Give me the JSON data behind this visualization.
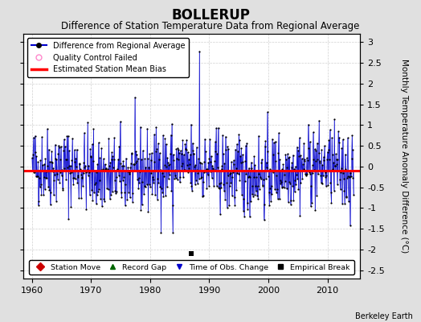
{
  "title": "BOLLERUP",
  "subtitle": "Difference of Station Temperature Data from Regional Average",
  "ylabel": "Monthly Temperature Anomaly Difference (°C)",
  "xlabel_bottom": "Berkeley Earth",
  "ylim": [
    -2.7,
    3.2
  ],
  "xlim": [
    1958.5,
    2015.5
  ],
  "xticks": [
    1960,
    1970,
    1980,
    1990,
    2000,
    2010
  ],
  "yticks_right": [
    3,
    2.5,
    2,
    1.5,
    1,
    0.5,
    0,
    -0.5,
    -1,
    -1.5,
    -2,
    -2.5
  ],
  "yticks_left": [
    3,
    2.5,
    2,
    1.5,
    1,
    0.5,
    0,
    -0.5,
    -1,
    -1.5,
    -2,
    -2.5
  ],
  "line_color": "#0000cc",
  "dot_color": "#000000",
  "bias_color": "#ff0000",
  "bias_value": -0.1,
  "empirical_break_x": 1987.0,
  "empirical_break_y": -2.1,
  "background_color": "#e0e0e0",
  "plot_bg_color": "#ffffff",
  "grid_color": "#cccccc",
  "title_fontsize": 12,
  "subtitle_fontsize": 8.5,
  "tick_fontsize": 8,
  "seed": 42
}
